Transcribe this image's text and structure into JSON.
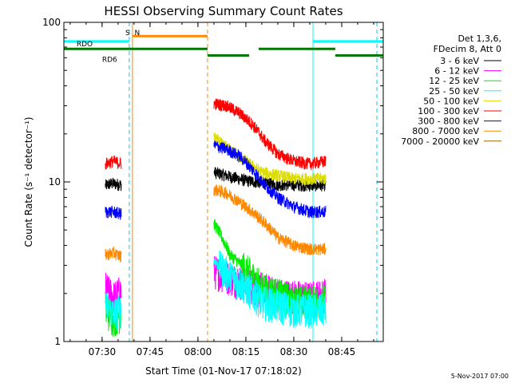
{
  "chart_data": {
    "type": "line",
    "title": "HESSI Observing Summary Count Rates",
    "xlabel": "Start Time (01-Nov-17 07:18:02)",
    "ylabel": "Count Rate (s⁻¹ detector⁻¹)",
    "yscale": "log",
    "ylim": [
      1,
      100
    ],
    "xlim": [
      "07:18:02",
      "08:58:00"
    ],
    "x_ticks": [
      "07:30",
      "07:45",
      "08:00",
      "08:15",
      "08:30",
      "08:45"
    ],
    "y_ticks": [
      "1",
      "10",
      "100"
    ],
    "legend_position": "right",
    "legend_header": [
      "Det 1,3,6,",
      "FDecim 8, Att 0"
    ],
    "series": [
      {
        "name": "3 - 6 keV",
        "color": "#000000",
        "segments": [
          {
            "x": [
              "07:31:00",
              "07:33:00",
              "07:36:00"
            ],
            "y": [
              9.5,
              9.8,
              9.6
            ]
          },
          {
            "x": [
              "08:05:00",
              "08:10:00",
              "08:15:00",
              "08:20:00",
              "08:25:00",
              "08:30:00",
              "08:35:00",
              "08:40:00"
            ],
            "y": [
              11.5,
              10.8,
              10.2,
              9.9,
              9.6,
              9.6,
              9.5,
              9.6
            ]
          }
        ]
      },
      {
        "name": "6 - 12 keV",
        "color": "#ff00ff",
        "segments": [
          {
            "x": [
              "07:31:00",
              "07:33:30",
              "07:36:00"
            ],
            "y": [
              2.2,
              1.9,
              2.1
            ]
          },
          {
            "x": [
              "08:05:00",
              "08:15:00",
              "08:25:00",
              "08:35:00",
              "08:40:00"
            ],
            "y": [
              2.8,
              2.3,
              2.0,
              1.9,
              2.0
            ]
          }
        ]
      },
      {
        "name": "12 - 25 keV",
        "color": "#00ee00",
        "segments": [
          {
            "x": [
              "07:31:00",
              "07:33:30",
              "07:36:00"
            ],
            "y": [
              1.6,
              1.4,
              1.5
            ]
          },
          {
            "x": [
              "08:05:00",
              "08:10:00",
              "08:20:00",
              "08:30:00",
              "08:40:00"
            ],
            "y": [
              5.5,
              3.5,
              2.2,
              1.8,
              1.8
            ]
          }
        ]
      },
      {
        "name": "25 - 50 keV",
        "color": "#00ffff",
        "segments": [
          {
            "x": [
              "07:31:00",
              "07:33:30",
              "07:36:00"
            ],
            "y": [
              1.7,
              1.5,
              1.6
            ]
          },
          {
            "x": [
              "08:05:00",
              "08:10:00",
              "08:20:00",
              "08:30:00",
              "08:40:00"
            ],
            "y": [
              3.2,
              2.6,
              1.8,
              1.6,
              1.6
            ]
          }
        ]
      },
      {
        "name": "50 - 100 keV",
        "color": "#dddd00",
        "segments": [
          {
            "x": [
              "08:05:00",
              "08:08:00",
              "08:12:00",
              "08:16:00",
              "08:20:00",
              "08:30:00",
              "08:40:00"
            ],
            "y": [
              19,
              17,
              15,
              13,
              11.5,
              10.5,
              10.5
            ]
          }
        ]
      },
      {
        "name": "100 - 300 keV",
        "color": "#ff0000",
        "segments": [
          {
            "x": [
              "07:31:00",
              "07:33:30",
              "07:36:00"
            ],
            "y": [
              13,
              13.5,
              13
            ]
          },
          {
            "x": [
              "08:05:00",
              "08:09:00",
              "08:13:00",
              "08:17:00",
              "08:21:00",
              "08:25:00",
              "08:30:00",
              "08:35:00",
              "08:40:00"
            ],
            "y": [
              31,
              30,
              27,
              23,
              18,
              15,
              13.5,
              13,
              13.5
            ]
          }
        ]
      },
      {
        "name": "300 - 800 keV",
        "color": "#0000ff",
        "segments": [
          {
            "x": [
              "07:31:00",
              "07:33:30",
              "07:36:00"
            ],
            "y": [
              6.5,
              6.5,
              6.3
            ]
          },
          {
            "x": [
              "08:05:00",
              "08:09:00",
              "08:13:00",
              "08:17:00",
              "08:21:00",
              "08:25:00",
              "08:30:00",
              "08:35:00",
              "08:40:00"
            ],
            "y": [
              17,
              16,
              14.5,
              12,
              9.5,
              8,
              7,
              6.5,
              6.5
            ]
          }
        ]
      },
      {
        "name": "800 - 7000 keV",
        "color": "#ff8800",
        "segments": [
          {
            "x": [
              "07:31:00",
              "07:33:30",
              "07:36:00"
            ],
            "y": [
              3.5,
              3.6,
              3.4
            ]
          },
          {
            "x": [
              "08:05:00",
              "08:09:00",
              "08:13:00",
              "08:17:00",
              "08:21:00",
              "08:25:00",
              "08:30:00",
              "08:35:00",
              "08:40:00"
            ],
            "y": [
              9,
              8.5,
              7.5,
              6.5,
              5.5,
              4.5,
              4.0,
              3.8,
              3.8
            ]
          }
        ]
      },
      {
        "name": "7000 - 20000 keV",
        "color": "#996600",
        "segments": []
      }
    ],
    "state_bars": [
      {
        "label": "RDO",
        "color": "#007700",
        "y": 62,
        "label_x": "07:22:00",
        "spans": [
          [
            "07:18:02",
            "08:03:00"
          ],
          [
            "08:03:00",
            "08:16:00"
          ],
          [
            "08:19:00",
            "08:43:00"
          ],
          [
            "08:43:00",
            "08:58:00"
          ]
        ],
        "levels": [
          1,
          0,
          1,
          0
        ]
      },
      {
        "label": "RD6",
        "color": "#007700",
        "y": 62,
        "label_x": "07:30:00",
        "spans": [],
        "levels": []
      }
    ],
    "flags": [
      {
        "label": "S",
        "color": "#ff8800",
        "x": "07:38:00"
      },
      {
        "label": "N",
        "color": "#00cccc",
        "x": "07:41:00"
      }
    ],
    "saa_bar": {
      "color": "#ff8800",
      "start": "07:39:30",
      "end": "08:03:00",
      "y": 82
    },
    "night_bars": [
      {
        "color": "#00ffff",
        "start": "07:18:02",
        "end": "07:38:30",
        "y": 76
      },
      {
        "color": "#00ffff",
        "start": "08:36:00",
        "end": "08:58:00",
        "y": 76
      }
    ],
    "vlines": [
      {
        "x": "07:38:30",
        "color": "#00ccff",
        "style": "dashed"
      },
      {
        "x": "07:39:30",
        "color": "#ff8800",
        "style": "solid"
      },
      {
        "x": "08:03:00",
        "color": "#ff8800",
        "style": "dashed"
      },
      {
        "x": "08:36:00",
        "color": "#00ffff",
        "style": "solid"
      },
      {
        "x": "08:56:00",
        "color": "#00ccff",
        "style": "dashed"
      }
    ]
  },
  "footer_text": "5-Nov-2017 07:00"
}
